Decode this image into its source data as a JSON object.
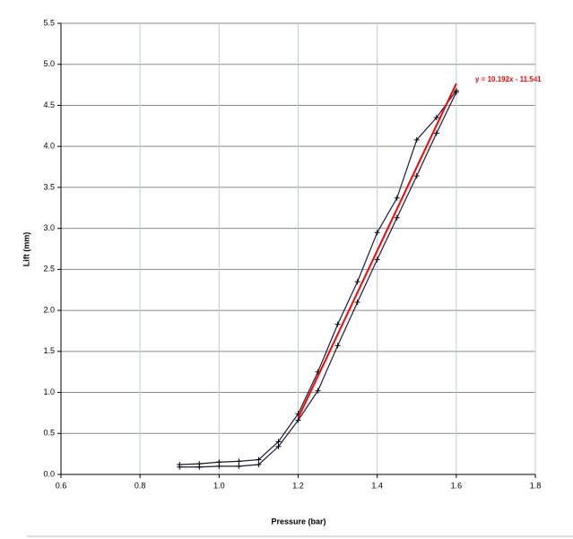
{
  "chart_data": {
    "type": "line",
    "xlabel": "Pressure (bar)",
    "ylabel": "Lift (mm)",
    "annotation": "y = 10.192x - 11.541",
    "xlim": [
      0.6,
      1.8
    ],
    "xticks": [
      0.6,
      0.8,
      {
        "value": 1,
        "label": "1.0"
      },
      1.2,
      1.4,
      1.6,
      1.8
    ],
    "ylim": [
      0,
      5.5
    ],
    "yticks": [
      {
        "value": 0,
        "label": "0.0"
      },
      0.5,
      {
        "value": 1,
        "label": "1.0"
      },
      1.5,
      {
        "value": 2,
        "label": "2.0"
      },
      2.5,
      {
        "value": 3,
        "label": "3.0"
      },
      3.5,
      {
        "value": 4,
        "label": "4.0"
      },
      4.5,
      {
        "value": 5,
        "label": "5.0"
      },
      5.5
    ],
    "grid": true,
    "series": [
      {
        "color": "#1a1a3a",
        "marker": "+",
        "x": [
          0.9,
          0.95,
          1.0,
          1.05,
          1.1,
          1.15,
          1.2,
          1.25,
          1.3,
          1.35,
          1.4,
          1.45,
          1.5,
          1.55,
          1.6
        ],
        "values": [
          0.12,
          0.13,
          0.15,
          0.16,
          0.18,
          0.4,
          0.74,
          1.25,
          1.83,
          2.35,
          2.95,
          3.37,
          4.08,
          4.35,
          4.68
        ]
      },
      {
        "color": "#1a1a3a",
        "marker": "+",
        "x": [
          0.9,
          0.95,
          1.0,
          1.05,
          1.1,
          1.15,
          1.2,
          1.25,
          1.3,
          1.35,
          1.4,
          1.45,
          1.5,
          1.55,
          1.6
        ],
        "values": [
          0.09,
          0.09,
          0.1,
          0.1,
          0.12,
          0.34,
          0.66,
          1.02,
          1.57,
          2.1,
          2.62,
          3.13,
          3.64,
          4.16,
          4.66
        ]
      },
      {
        "color": "#ff0000",
        "marker": "none",
        "x": [
          1.2,
          1.6
        ],
        "values": [
          0.689,
          4.766
        ]
      }
    ]
  }
}
